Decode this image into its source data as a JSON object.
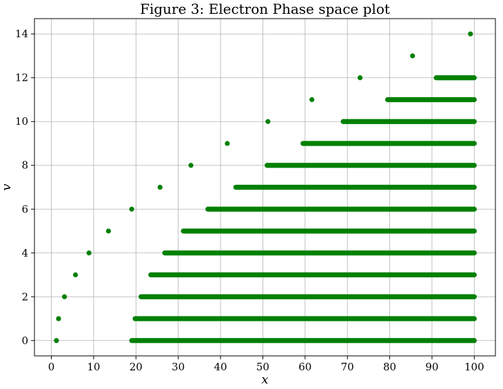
{
  "chart_data": {
    "type": "scatter",
    "title": "Figure 3: Electron Phase space plot",
    "xlabel": "x",
    "ylabel": "v",
    "xlim": [
      -4,
      105
    ],
    "ylim": [
      -0.7,
      14.7
    ],
    "xticks": [
      0,
      10,
      20,
      30,
      40,
      50,
      60,
      70,
      80,
      90,
      100
    ],
    "yticks": [
      0,
      2,
      4,
      6,
      8,
      10,
      12,
      14
    ],
    "grid": true,
    "color": "#008000",
    "isolated_points": [
      {
        "x": 1.2,
        "y": 0
      },
      {
        "x": 1.7,
        "y": 1
      },
      {
        "x": 3.1,
        "y": 2
      },
      {
        "x": 5.7,
        "y": 3
      },
      {
        "x": 8.9,
        "y": 4
      },
      {
        "x": 13.5,
        "y": 5
      },
      {
        "x": 19.0,
        "y": 6
      },
      {
        "x": 25.7,
        "y": 7
      },
      {
        "x": 33.0,
        "y": 8
      },
      {
        "x": 41.6,
        "y": 9
      },
      {
        "x": 51.2,
        "y": 10
      },
      {
        "x": 61.6,
        "y": 11
      },
      {
        "x": 73.0,
        "y": 12
      },
      {
        "x": 85.4,
        "y": 13
      },
      {
        "x": 99.1,
        "y": 14
      }
    ],
    "bands": [
      {
        "y": 0,
        "x_start": 19.0,
        "x_end": 100
      },
      {
        "y": 1,
        "x_start": 19.8,
        "x_end": 100
      },
      {
        "y": 2,
        "x_start": 21.2,
        "x_end": 100
      },
      {
        "y": 3,
        "x_start": 23.5,
        "x_end": 100
      },
      {
        "y": 4,
        "x_start": 26.8,
        "x_end": 100
      },
      {
        "y": 5,
        "x_start": 31.2,
        "x_end": 100
      },
      {
        "y": 6,
        "x_start": 37.0,
        "x_end": 100
      },
      {
        "y": 7,
        "x_start": 43.6,
        "x_end": 100
      },
      {
        "y": 8,
        "x_start": 51.0,
        "x_end": 100
      },
      {
        "y": 9,
        "x_start": 59.5,
        "x_end": 100
      },
      {
        "y": 10,
        "x_start": 69.0,
        "x_end": 100
      },
      {
        "y": 11,
        "x_start": 79.5,
        "x_end": 100
      },
      {
        "y": 12,
        "x_start": 91.0,
        "x_end": 100
      }
    ]
  }
}
